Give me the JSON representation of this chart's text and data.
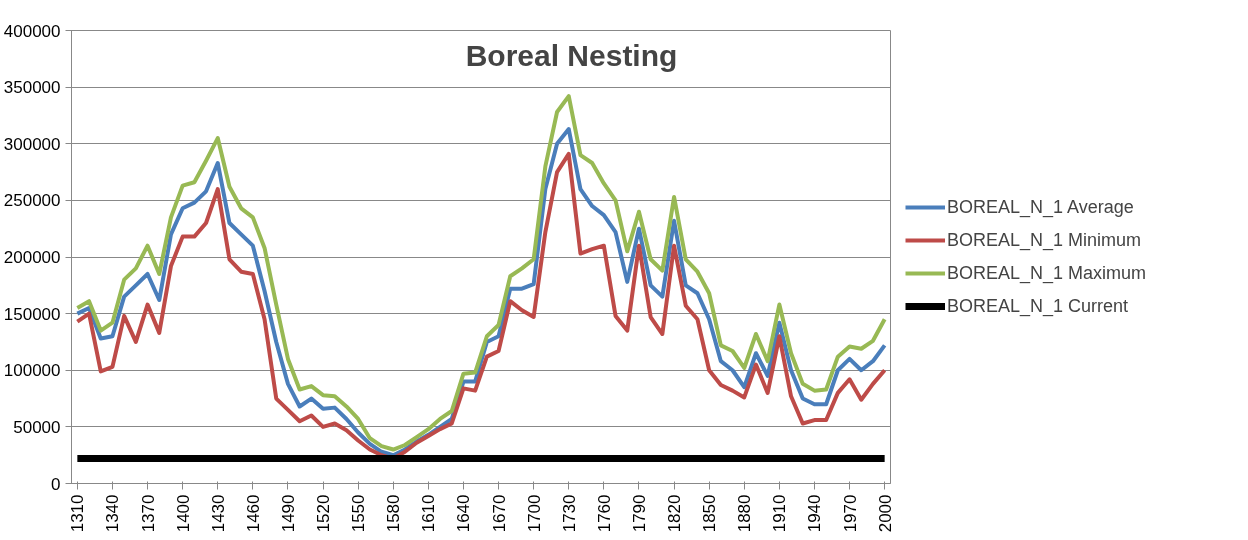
{
  "chart_data": {
    "type": "line",
    "title": "Boreal Nesting",
    "x": [
      1310,
      1320,
      1330,
      1340,
      1350,
      1360,
      1370,
      1380,
      1390,
      1400,
      1410,
      1420,
      1430,
      1440,
      1450,
      1460,
      1470,
      1480,
      1490,
      1500,
      1510,
      1520,
      1530,
      1540,
      1550,
      1560,
      1570,
      1580,
      1590,
      1600,
      1610,
      1620,
      1630,
      1640,
      1650,
      1660,
      1670,
      1680,
      1690,
      1700,
      1710,
      1720,
      1730,
      1740,
      1750,
      1760,
      1770,
      1780,
      1790,
      1800,
      1810,
      1820,
      1830,
      1840,
      1850,
      1860,
      1870,
      1880,
      1890,
      1900,
      1910,
      1920,
      1930,
      1940,
      1950,
      1960,
      1970,
      1980,
      1990,
      2000
    ],
    "series": [
      {
        "name": "BOREAL_N_1 Average",
        "color": "#4a7ebb",
        "values": [
          150000,
          155000,
          128000,
          130000,
          165000,
          175000,
          185000,
          162000,
          220000,
          243000,
          248000,
          258000,
          283000,
          230000,
          220000,
          210000,
          170000,
          125000,
          88000,
          68000,
          75000,
          66000,
          67000,
          57000,
          45000,
          35000,
          28000,
          25000,
          30000,
          37000,
          43000,
          50000,
          57000,
          90000,
          90000,
          125000,
          130000,
          172000,
          172000,
          176000,
          260000,
          300000,
          313000,
          260000,
          245000,
          237000,
          222000,
          178000,
          225000,
          175000,
          165000,
          232000,
          175000,
          168000,
          145000,
          108000,
          100000,
          85000,
          115000,
          95000,
          142000,
          100000,
          75000,
          70000,
          70000,
          100000,
          110000,
          100000,
          108000,
          122000
        ]
      },
      {
        "name": "BOREAL_N_1 Minimum",
        "color": "#be4b48",
        "values": [
          143000,
          150000,
          99000,
          103000,
          148000,
          125000,
          158000,
          133000,
          192000,
          218000,
          218000,
          230000,
          260000,
          198000,
          187000,
          185000,
          145000,
          75000,
          65000,
          55000,
          60000,
          50000,
          53000,
          47000,
          38000,
          30000,
          25000,
          22000,
          28000,
          36000,
          42000,
          48000,
          53000,
          84000,
          82000,
          112000,
          117000,
          161000,
          153000,
          147000,
          222000,
          275000,
          291000,
          203000,
          207000,
          210000,
          148000,
          135000,
          210000,
          147000,
          132000,
          210000,
          157000,
          145000,
          100000,
          87000,
          82000,
          76000,
          105000,
          80000,
          130000,
          77000,
          53000,
          56000,
          56000,
          80000,
          92000,
          74000,
          88000,
          100000
        ]
      },
      {
        "name": "BOREAL_N_1 Maximum",
        "color": "#98b954",
        "values": [
          155000,
          161000,
          135000,
          142000,
          180000,
          190000,
          210000,
          185000,
          235000,
          263000,
          266000,
          285000,
          305000,
          262000,
          243000,
          235000,
          208000,
          158000,
          110000,
          83000,
          86000,
          78000,
          77000,
          68000,
          57000,
          40000,
          33000,
          30000,
          34000,
          41000,
          48000,
          57000,
          64000,
          97000,
          98000,
          130000,
          140000,
          183000,
          190000,
          198000,
          280000,
          328000,
          342000,
          290000,
          283000,
          265000,
          250000,
          205000,
          240000,
          198000,
          188000,
          253000,
          198000,
          187000,
          168000,
          122000,
          117000,
          102000,
          132000,
          108000,
          158000,
          115000,
          88000,
          82000,
          83000,
          112000,
          121000,
          119000,
          126000,
          145000
        ]
      },
      {
        "name": "BOREAL_N_1 Current",
        "color": "#000000",
        "values": [
          22000,
          22000,
          22000,
          22000,
          22000,
          22000,
          22000,
          22000,
          22000,
          22000,
          22000,
          22000,
          22000,
          22000,
          22000,
          22000,
          22000,
          22000,
          22000,
          22000,
          22000,
          22000,
          22000,
          22000,
          22000,
          22000,
          22000,
          22000,
          22000,
          22000,
          22000,
          22000,
          22000,
          22000,
          22000,
          22000,
          22000,
          22000,
          22000,
          22000,
          22000,
          22000,
          22000,
          22000,
          22000,
          22000,
          22000,
          22000,
          22000,
          22000,
          22000,
          22000,
          22000,
          22000,
          22000,
          22000,
          22000,
          22000,
          22000,
          22000,
          22000,
          22000,
          22000,
          22000,
          22000,
          22000,
          22000,
          22000,
          22000,
          22000
        ]
      }
    ],
    "xlim": [
      1305,
      2005
    ],
    "xticks": [
      1310,
      1340,
      1370,
      1400,
      1430,
      1460,
      1490,
      1520,
      1550,
      1580,
      1610,
      1640,
      1670,
      1700,
      1730,
      1760,
      1790,
      1820,
      1850,
      1880,
      1910,
      1940,
      1970,
      2000
    ],
    "ylim": [
      0,
      400000
    ],
    "yticks": [
      0,
      50000,
      100000,
      150000,
      200000,
      250000,
      300000,
      350000,
      400000
    ],
    "grid": "y",
    "legend": "right",
    "marker": "none",
    "line_style": "solid"
  }
}
